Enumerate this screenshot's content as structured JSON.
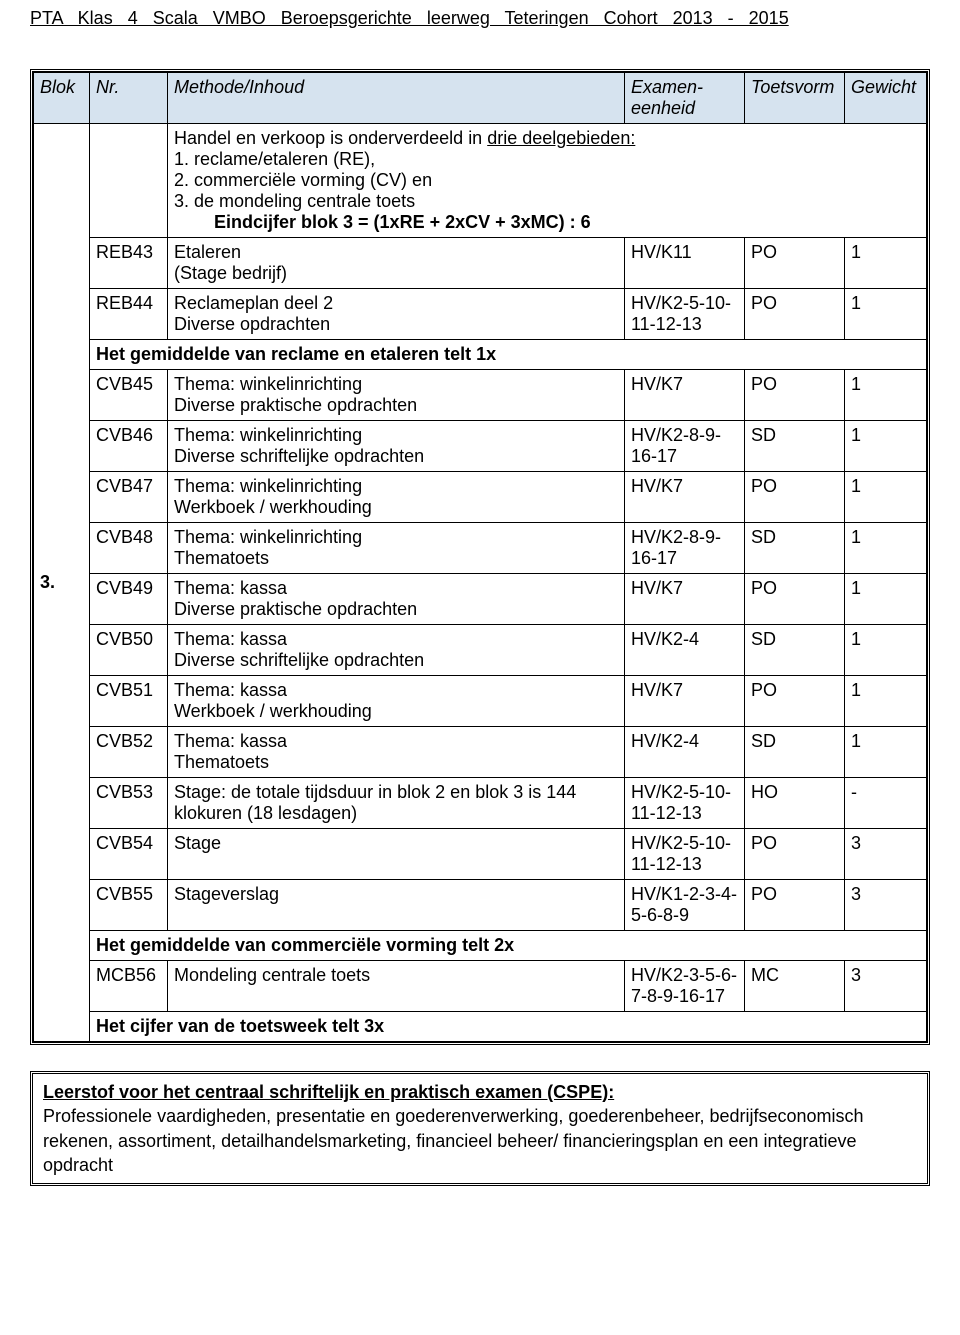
{
  "header": "PTA   Klas 4   Scala   VMBO Beroepsgerichte leerweg   Teteringen   Cohort 2013 - 2015",
  "columns": {
    "blok": "Blok",
    "nr": "Nr.",
    "method": "Methode/Inhoud",
    "exam": "Examen-eenheid",
    "form": "Toetsvorm",
    "weight": "Gewicht"
  },
  "intro": {
    "line1a": "Handel en verkoop is onderverdeeld in ",
    "line1b": "drie deelgebieden:",
    "line2": "1. reclame/etaleren (RE),",
    "line3": "2. commerciële vorming (CV) en",
    "line4": "3. de mondeling centrale toets",
    "scoreline": "Eindcijfer blok 3 = (1xRE + 2xCV + 3xMC) : 6"
  },
  "blok_label": "3.",
  "rows": [
    {
      "nr": "REB43",
      "method": "Etaleren\n(Stage bedrijf)",
      "exam": "HV/K11",
      "form": "PO",
      "weight": "1"
    },
    {
      "nr": "REB44",
      "method": "Reclameplan deel 2\nDiverse opdrachten",
      "exam": "HV/K2-5-10-11-12-13",
      "form": "PO",
      "weight": "1"
    },
    {
      "span": true,
      "text": "Het gemiddelde van reclame en etaleren telt 1x"
    },
    {
      "nr": "CVB45",
      "method": "Thema: winkelinrichting\nDiverse praktische opdrachten",
      "exam": "HV/K7",
      "form": "PO",
      "weight": "1"
    },
    {
      "nr": "CVB46",
      "method": "Thema: winkelinrichting\nDiverse schriftelijke opdrachten",
      "exam": "HV/K2-8-9-16-17",
      "form": "SD",
      "weight": "1"
    },
    {
      "nr": "CVB47",
      "method": "Thema: winkelinrichting\nWerkboek / werkhouding",
      "exam": "HV/K7",
      "form": "PO",
      "weight": "1"
    },
    {
      "nr": "CVB48",
      "method": "Thema: winkelinrichting\nThematoets",
      "exam": "HV/K2-8-9-16-17",
      "form": "SD",
      "weight": "1"
    },
    {
      "nr": "CVB49",
      "method": "Thema: kassa\nDiverse praktische opdrachten",
      "exam": "HV/K7",
      "form": "PO",
      "weight": "1"
    },
    {
      "nr": "CVB50",
      "method": "Thema: kassa\nDiverse schriftelijke opdrachten",
      "exam": "HV/K2-4",
      "form": "SD",
      "weight": "1"
    },
    {
      "nr": "CVB51",
      "method": "Thema: kassa\nWerkboek / werkhouding",
      "exam": "HV/K7",
      "form": "PO",
      "weight": "1"
    },
    {
      "nr": "CVB52",
      "method": "Thema: kassa\nThematoets",
      "exam": "HV/K2-4",
      "form": "SD",
      "weight": "1"
    },
    {
      "nr": "CVB53",
      "method": "Stage: de totale tijdsduur in blok 2 en blok 3 is 144 klokuren (18 lesdagen)",
      "exam": "HV/K2-5-10-11-12-13",
      "form": "HO",
      "weight": "-"
    },
    {
      "nr": "CVB54",
      "method": "Stage",
      "exam": "HV/K2-5-10-11-12-13",
      "form": "PO",
      "weight": "3"
    },
    {
      "nr": "CVB55",
      "method": "Stageverslag",
      "exam": "HV/K1-2-3-4-5-6-8-9",
      "form": "PO",
      "weight": "3"
    },
    {
      "span": true,
      "text": "Het gemiddelde van commerciële vorming telt 2x"
    },
    {
      "nr": "MCB56",
      "method": "Mondeling centrale toets",
      "exam": "HV/K2-3-5-6-7-8-9-16-17",
      "form": "MC",
      "weight": "3"
    },
    {
      "span": true,
      "text": "Het cijfer van de toetsweek telt 3x"
    }
  ],
  "lessonbox": {
    "title": "Leerstof voor het centraal schriftelijk en praktisch examen (CSPE):",
    "body": "Professionele vaardigheden, presentatie en goederenverwerking, goederenbeheer, bedrijfseconomisch rekenen, assortiment, detailhandelsmarketing, financieel beheer/ financieringsplan en een integratieve opdracht"
  },
  "colors": {
    "header_bg": "#d6e3ef",
    "text": "#000000",
    "bg": "#ffffff"
  }
}
